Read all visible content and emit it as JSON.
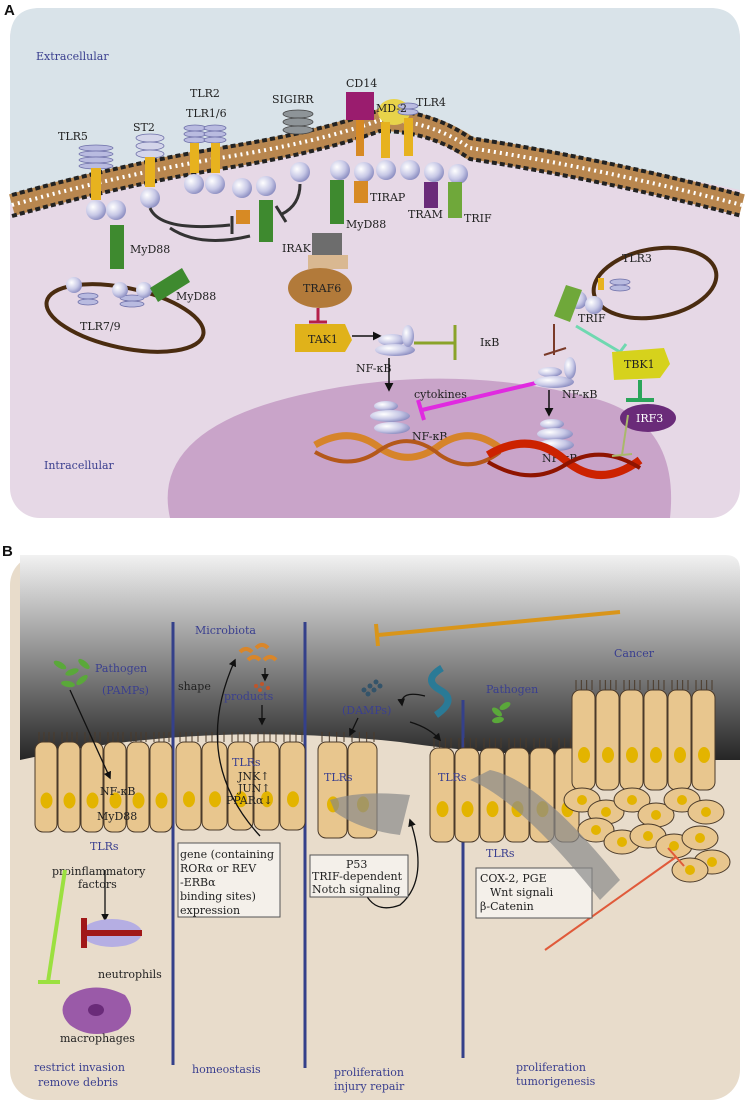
{
  "panel_a": {
    "label": "A",
    "extracellular": "Extracellular",
    "intracellular": "Intracellular",
    "receptors": {
      "tlr5": "TLR5",
      "st2": "ST2",
      "tlr2": "TLR2",
      "tlr16": "TLR1/6",
      "sigirr": "SIGIRR",
      "cd14": "CD14",
      "md2": "MD-2",
      "tlr4": "TLR4",
      "tlr79": "TLR7/9",
      "tlr3": "TLR3"
    },
    "adaptors": {
      "myd88_left": "MyD88",
      "myd88_endo": "MyD88",
      "myd88_mid": "MyD88",
      "tirap": "TIRAP",
      "tram": "TRAM",
      "trif_mem": "TRIF",
      "trif_endo": "TRIF"
    },
    "kinases": {
      "irak": "IRAK",
      "traf6": "TRAF6",
      "tak1": "TAK1",
      "tbk1": "TBK1",
      "irf3": "IRF3",
      "ikb": "IκB"
    },
    "nfkb_1": "NF-κB",
    "nfkb_2": "NF-κB",
    "nfkb_3": "NF-κB",
    "nfkb_4": "NF-κB",
    "cytokines": "cytokines"
  },
  "panel_b": {
    "label": "B",
    "microbiota": "Microbiota",
    "pathogen_left": "Pathogen",
    "pamps": "(PAMPs)",
    "shape": "shape",
    "products": "products",
    "damps": "(DAMPs)",
    "pathogen_right": "Pathogen",
    "cancer": "Cancer",
    "tlrs_1": "TLRs",
    "tlrs_2": "TLRs",
    "tlrs_3": "TLRs",
    "tlrs_4": "TLRs",
    "tlrs_5": "TLRs",
    "nfkb": "NF-κB",
    "myd88": "MyD88",
    "jnk": "JNK↑",
    "jun": "JUN↑",
    "ppar": "PPARα↓",
    "proinflammatory_1": "proinflammatory",
    "proinflammatory_2": "factors",
    "neutrophils": "neutrophils",
    "macrophages": "macrophages",
    "gene_box": [
      "gene (containing",
      "RORα or REV",
      "-ERBα",
      "binding sites)",
      "expression"
    ],
    "p53_box": [
      "P53",
      "TRIF-dependent",
      "Notch signaling"
    ],
    "cox_box": [
      "COX-2, PGE",
      "Wnt signali",
      "β-Catenin"
    ],
    "outcome_1": [
      "restrict invasion",
      "remove debris"
    ],
    "outcome_2": [
      "homeostasis"
    ],
    "outcome_3": [
      "proliferation",
      "injury repair"
    ],
    "outcome_4": [
      "proliferation",
      "tumorigenesis"
    ]
  },
  "colors": {
    "extracellular_bg": "#d9e3e9",
    "intracellular_bg": "#e6d8e6",
    "nucleus": "#c9a4c9",
    "membrane": "#b9874f",
    "receptor": "#e7b21f",
    "myd88": "#3e8a2f",
    "traf6": "#b27a3a",
    "tak1": "#e0b21a",
    "tbk1": "#d6d21c",
    "irf3": "#6a2b79",
    "cd14": "#9a1c6e",
    "magenta_inhibit": "#e02ae0",
    "epithelium": "#e8c68e",
    "nucleus_b": "#e3b400",
    "divider": "#34408a"
  }
}
